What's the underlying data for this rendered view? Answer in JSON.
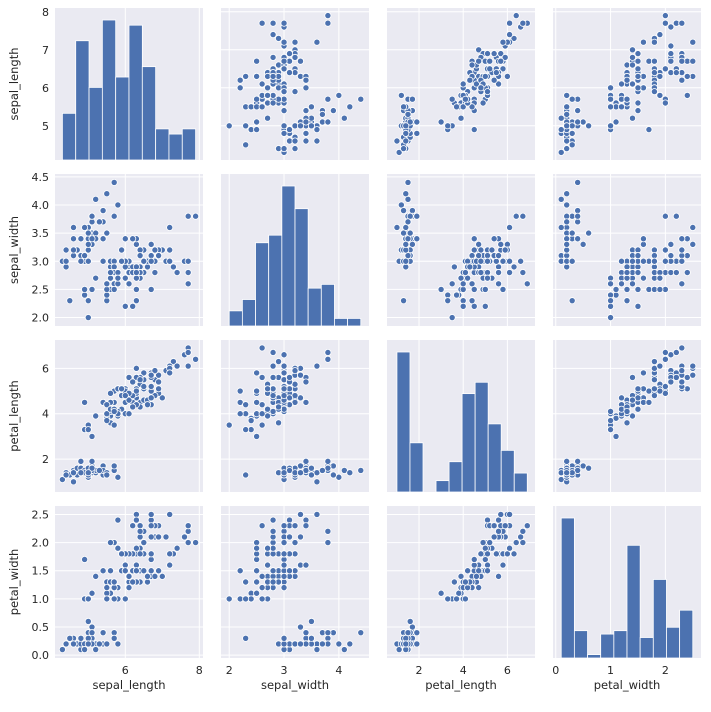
{
  "chart_data": {
    "type": "scatter",
    "kind": "pairplot",
    "variables": [
      "sepal_length",
      "sepal_width",
      "petal_length",
      "petal_width"
    ],
    "ranges": {
      "sepal_length": [
        4.1,
        8.1
      ],
      "sepal_width": [
        1.85,
        4.55
      ],
      "petal_length": [
        0.55,
        7.25
      ],
      "petal_width": [
        -0.05,
        2.65
      ]
    },
    "ticks": {
      "sepal_length": [
        5,
        6,
        7,
        8
      ],
      "sepal_width": [
        2.0,
        2.5,
        3.0,
        3.5,
        4.0,
        4.5
      ],
      "petal_length": [
        2,
        4,
        6
      ],
      "petal_width": [
        0.0,
        0.5,
        1.0,
        1.5,
        2.0,
        2.5
      ]
    },
    "xticks": {
      "sepal_length": [
        6,
        8
      ],
      "sepal_width": [
        2,
        3,
        4
      ],
      "petal_length": [
        2,
        4,
        6
      ],
      "petal_width": [
        0,
        1,
        2
      ]
    },
    "histograms": {
      "sepal_length": {
        "bins": [
          4.3,
          4.66,
          5.02,
          5.38,
          5.74,
          6.1,
          6.46,
          6.82,
          7.18,
          7.54,
          7.9
        ],
        "counts": [
          9,
          23,
          14,
          27,
          16,
          26,
          18,
          6,
          5,
          6
        ]
      },
      "sepal_width": {
        "bins": [
          2.0,
          2.24,
          2.48,
          2.72,
          2.96,
          3.2,
          3.44,
          3.68,
          3.92,
          4.16,
          4.4
        ],
        "counts": [
          4,
          7,
          22,
          24,
          37,
          31,
          10,
          11,
          2,
          2
        ]
      },
      "petal_length": {
        "bins": [
          1.0,
          1.59,
          2.18,
          2.77,
          3.36,
          3.95,
          4.54,
          5.13,
          5.72,
          6.31,
          6.9
        ],
        "counts": [
          37,
          13,
          0,
          3,
          8,
          26,
          29,
          18,
          11,
          5
        ]
      },
      "petal_width": {
        "bins": [
          0.1,
          0.34,
          0.58,
          0.82,
          1.06,
          1.3,
          1.54,
          1.78,
          2.02,
          2.26,
          2.5
        ],
        "counts": [
          41,
          8,
          1,
          7,
          8,
          33,
          6,
          23,
          9,
          14
        ]
      }
    },
    "points": [
      [
        5.1,
        3.5,
        1.4,
        0.2
      ],
      [
        4.9,
        3.0,
        1.4,
        0.2
      ],
      [
        4.7,
        3.2,
        1.3,
        0.2
      ],
      [
        4.6,
        3.1,
        1.5,
        0.2
      ],
      [
        5.0,
        3.6,
        1.4,
        0.2
      ],
      [
        5.4,
        3.9,
        1.7,
        0.4
      ],
      [
        4.6,
        3.4,
        1.4,
        0.3
      ],
      [
        5.0,
        3.4,
        1.5,
        0.2
      ],
      [
        4.4,
        2.9,
        1.4,
        0.2
      ],
      [
        4.9,
        3.1,
        1.5,
        0.1
      ],
      [
        5.4,
        3.7,
        1.5,
        0.2
      ],
      [
        4.8,
        3.4,
        1.6,
        0.2
      ],
      [
        4.8,
        3.0,
        1.4,
        0.1
      ],
      [
        4.3,
        3.0,
        1.1,
        0.1
      ],
      [
        5.8,
        4.0,
        1.2,
        0.2
      ],
      [
        5.7,
        4.4,
        1.5,
        0.4
      ],
      [
        5.4,
        3.9,
        1.3,
        0.4
      ],
      [
        5.1,
        3.5,
        1.4,
        0.3
      ],
      [
        5.7,
        3.8,
        1.7,
        0.3
      ],
      [
        5.1,
        3.8,
        1.5,
        0.3
      ],
      [
        5.4,
        3.4,
        1.7,
        0.2
      ],
      [
        5.1,
        3.7,
        1.5,
        0.4
      ],
      [
        4.6,
        3.6,
        1.0,
        0.2
      ],
      [
        5.1,
        3.3,
        1.7,
        0.5
      ],
      [
        4.8,
        3.4,
        1.9,
        0.2
      ],
      [
        5.0,
        3.0,
        1.6,
        0.2
      ],
      [
        5.0,
        3.4,
        1.6,
        0.4
      ],
      [
        5.2,
        3.5,
        1.5,
        0.2
      ],
      [
        5.2,
        3.4,
        1.4,
        0.2
      ],
      [
        4.7,
        3.2,
        1.6,
        0.2
      ],
      [
        4.8,
        3.1,
        1.6,
        0.2
      ],
      [
        5.4,
        3.4,
        1.5,
        0.4
      ],
      [
        5.2,
        4.1,
        1.5,
        0.1
      ],
      [
        5.5,
        4.2,
        1.4,
        0.2
      ],
      [
        4.9,
        3.1,
        1.5,
        0.2
      ],
      [
        5.0,
        3.2,
        1.2,
        0.2
      ],
      [
        5.5,
        3.5,
        1.3,
        0.2
      ],
      [
        4.9,
        3.6,
        1.4,
        0.1
      ],
      [
        4.4,
        3.0,
        1.3,
        0.2
      ],
      [
        5.1,
        3.4,
        1.5,
        0.2
      ],
      [
        5.0,
        3.5,
        1.3,
        0.3
      ],
      [
        4.5,
        2.3,
        1.3,
        0.3
      ],
      [
        4.4,
        3.2,
        1.3,
        0.2
      ],
      [
        5.0,
        3.5,
        1.6,
        0.6
      ],
      [
        5.1,
        3.8,
        1.9,
        0.4
      ],
      [
        4.8,
        3.0,
        1.4,
        0.3
      ],
      [
        5.1,
        3.8,
        1.6,
        0.2
      ],
      [
        4.6,
        3.2,
        1.4,
        0.2
      ],
      [
        5.3,
        3.7,
        1.5,
        0.2
      ],
      [
        5.0,
        3.3,
        1.4,
        0.2
      ],
      [
        7.0,
        3.2,
        4.7,
        1.4
      ],
      [
        6.4,
        3.2,
        4.5,
        1.5
      ],
      [
        6.9,
        3.1,
        4.9,
        1.5
      ],
      [
        5.5,
        2.3,
        4.0,
        1.3
      ],
      [
        6.5,
        2.8,
        4.6,
        1.5
      ],
      [
        5.7,
        2.8,
        4.5,
        1.3
      ],
      [
        6.3,
        3.3,
        4.7,
        1.6
      ],
      [
        4.9,
        2.4,
        3.3,
        1.0
      ],
      [
        6.6,
        2.9,
        4.6,
        1.3
      ],
      [
        5.2,
        2.7,
        3.9,
        1.4
      ],
      [
        5.0,
        2.0,
        3.5,
        1.0
      ],
      [
        5.9,
        3.0,
        4.2,
        1.5
      ],
      [
        6.0,
        2.2,
        4.0,
        1.0
      ],
      [
        6.1,
        2.9,
        4.7,
        1.4
      ],
      [
        5.6,
        2.9,
        3.6,
        1.3
      ],
      [
        6.7,
        3.1,
        4.4,
        1.4
      ],
      [
        5.6,
        3.0,
        4.5,
        1.5
      ],
      [
        5.8,
        2.7,
        4.1,
        1.0
      ],
      [
        6.2,
        2.2,
        4.5,
        1.5
      ],
      [
        5.6,
        2.5,
        3.9,
        1.1
      ],
      [
        5.9,
        3.2,
        4.8,
        1.8
      ],
      [
        6.1,
        2.8,
        4.0,
        1.3
      ],
      [
        6.3,
        2.5,
        4.9,
        1.5
      ],
      [
        6.1,
        2.8,
        4.7,
        1.2
      ],
      [
        6.4,
        2.9,
        4.3,
        1.3
      ],
      [
        6.6,
        3.0,
        4.4,
        1.4
      ],
      [
        6.8,
        2.8,
        4.8,
        1.4
      ],
      [
        6.7,
        3.0,
        5.0,
        1.7
      ],
      [
        6.0,
        2.9,
        4.5,
        1.5
      ],
      [
        5.7,
        2.6,
        3.5,
        1.0
      ],
      [
        5.5,
        2.4,
        3.8,
        1.1
      ],
      [
        5.5,
        2.4,
        3.7,
        1.0
      ],
      [
        5.8,
        2.7,
        3.9,
        1.2
      ],
      [
        6.0,
        2.7,
        5.1,
        1.6
      ],
      [
        5.4,
        3.0,
        4.5,
        1.5
      ],
      [
        6.0,
        3.4,
        4.5,
        1.6
      ],
      [
        6.7,
        3.1,
        4.7,
        1.5
      ],
      [
        6.3,
        2.3,
        4.4,
        1.3
      ],
      [
        5.6,
        3.0,
        4.1,
        1.3
      ],
      [
        5.5,
        2.5,
        4.0,
        1.3
      ],
      [
        5.5,
        2.6,
        4.4,
        1.2
      ],
      [
        6.1,
        3.0,
        4.6,
        1.4
      ],
      [
        5.8,
        2.6,
        4.0,
        1.2
      ],
      [
        5.0,
        2.3,
        3.3,
        1.0
      ],
      [
        5.6,
        2.7,
        4.2,
        1.3
      ],
      [
        5.7,
        3.0,
        4.2,
        1.2
      ],
      [
        5.7,
        2.9,
        4.2,
        1.3
      ],
      [
        6.2,
        2.9,
        4.3,
        1.3
      ],
      [
        5.1,
        2.5,
        3.0,
        1.1
      ],
      [
        5.7,
        2.8,
        4.1,
        1.3
      ],
      [
        6.3,
        3.3,
        6.0,
        2.5
      ],
      [
        5.8,
        2.7,
        5.1,
        1.9
      ],
      [
        7.1,
        3.0,
        5.9,
        2.1
      ],
      [
        6.3,
        2.9,
        5.6,
        1.8
      ],
      [
        6.5,
        3.0,
        5.8,
        2.2
      ],
      [
        7.6,
        3.0,
        6.6,
        2.1
      ],
      [
        4.9,
        2.5,
        4.5,
        1.7
      ],
      [
        7.3,
        2.9,
        6.3,
        1.8
      ],
      [
        6.7,
        2.5,
        5.8,
        1.8
      ],
      [
        7.2,
        3.6,
        6.1,
        2.5
      ],
      [
        6.5,
        3.2,
        5.1,
        2.0
      ],
      [
        6.4,
        2.7,
        5.3,
        1.9
      ],
      [
        6.8,
        3.0,
        5.5,
        2.1
      ],
      [
        5.7,
        2.5,
        5.0,
        2.0
      ],
      [
        5.8,
        2.8,
        5.1,
        2.4
      ],
      [
        6.4,
        3.2,
        5.3,
        2.3
      ],
      [
        6.5,
        3.0,
        5.5,
        1.8
      ],
      [
        7.7,
        3.8,
        6.7,
        2.2
      ],
      [
        7.7,
        2.6,
        6.9,
        2.3
      ],
      [
        6.0,
        2.2,
        5.0,
        1.5
      ],
      [
        6.9,
        3.2,
        5.7,
        2.3
      ],
      [
        5.6,
        2.8,
        4.9,
        2.0
      ],
      [
        7.7,
        2.8,
        6.7,
        2.0
      ],
      [
        6.3,
        2.7,
        4.9,
        1.8
      ],
      [
        6.7,
        3.3,
        5.7,
        2.1
      ],
      [
        7.2,
        3.2,
        6.0,
        1.8
      ],
      [
        6.2,
        2.8,
        4.8,
        1.8
      ],
      [
        6.1,
        3.0,
        4.9,
        1.8
      ],
      [
        6.4,
        2.8,
        5.6,
        2.1
      ],
      [
        7.2,
        3.0,
        5.8,
        1.6
      ],
      [
        7.4,
        2.8,
        6.1,
        1.9
      ],
      [
        7.9,
        3.8,
        6.4,
        2.0
      ],
      [
        6.4,
        2.8,
        5.6,
        2.2
      ],
      [
        6.3,
        2.8,
        5.1,
        1.5
      ],
      [
        6.1,
        2.6,
        5.6,
        1.4
      ],
      [
        7.7,
        3.0,
        6.1,
        2.3
      ],
      [
        6.3,
        3.4,
        5.6,
        2.4
      ],
      [
        6.4,
        3.1,
        5.5,
        1.8
      ],
      [
        6.0,
        3.0,
        4.8,
        1.8
      ],
      [
        6.9,
        3.1,
        5.4,
        2.1
      ],
      [
        6.7,
        3.1,
        5.6,
        2.4
      ],
      [
        6.9,
        3.1,
        5.1,
        2.3
      ],
      [
        5.8,
        2.7,
        5.1,
        1.9
      ],
      [
        6.8,
        3.2,
        5.9,
        2.3
      ],
      [
        6.7,
        3.3,
        5.7,
        2.5
      ],
      [
        6.7,
        3.0,
        5.2,
        2.3
      ],
      [
        6.3,
        2.5,
        5.0,
        1.9
      ],
      [
        6.5,
        3.0,
        5.2,
        2.0
      ],
      [
        6.2,
        3.4,
        5.4,
        2.3
      ],
      [
        5.9,
        3.0,
        5.1,
        1.8
      ]
    ],
    "grid": true,
    "legend": "none",
    "colors": {
      "marker": "#4c72b0",
      "background": "#eaeaf2",
      "grid": "#ffffff"
    }
  }
}
